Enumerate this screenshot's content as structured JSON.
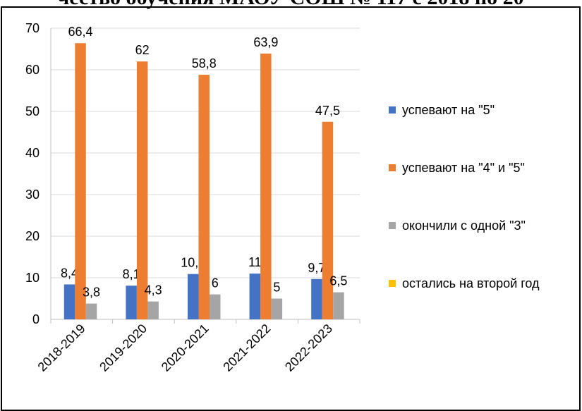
{
  "chart_data": {
    "type": "bar",
    "title": "чество обучения МАОУ СОШ № 117 с 2018 по 20",
    "categories": [
      "2018-2019",
      "2019-2020",
      "2020-2021",
      "2021-2022",
      "2022-2023"
    ],
    "series": [
      {
        "name": "успевают на \"5\"",
        "color": "#4472c4",
        "values": [
          8.4,
          8.1,
          10.9,
          11,
          9.7
        ],
        "value_labels": [
          "8,4",
          "8,1",
          "10,9",
          "11",
          "9,7"
        ]
      },
      {
        "name": "успевают на \"4\" и \"5\"",
        "color": "#ed7d31",
        "values": [
          66.4,
          62,
          58.8,
          63.9,
          47.5
        ],
        "value_labels": [
          "66,4",
          "62",
          "58,8",
          "63,9",
          "47,5"
        ]
      },
      {
        "name": "окончили с одной \"3\"",
        "color": "#a5a5a5",
        "values": [
          3.8,
          4.3,
          6,
          5,
          6.5
        ],
        "value_labels": [
          "3,8",
          "4,3",
          "6",
          "5",
          "6,5"
        ]
      },
      {
        "name": "остались на второй год",
        "color": "#ffc000",
        "values": [
          0,
          0,
          0,
          0,
          0
        ]
      }
    ],
    "ylim": [
      0,
      70
    ],
    "yticks": [
      0,
      10,
      20,
      30,
      40,
      50,
      60,
      70
    ],
    "grid": true,
    "legend": "right"
  }
}
